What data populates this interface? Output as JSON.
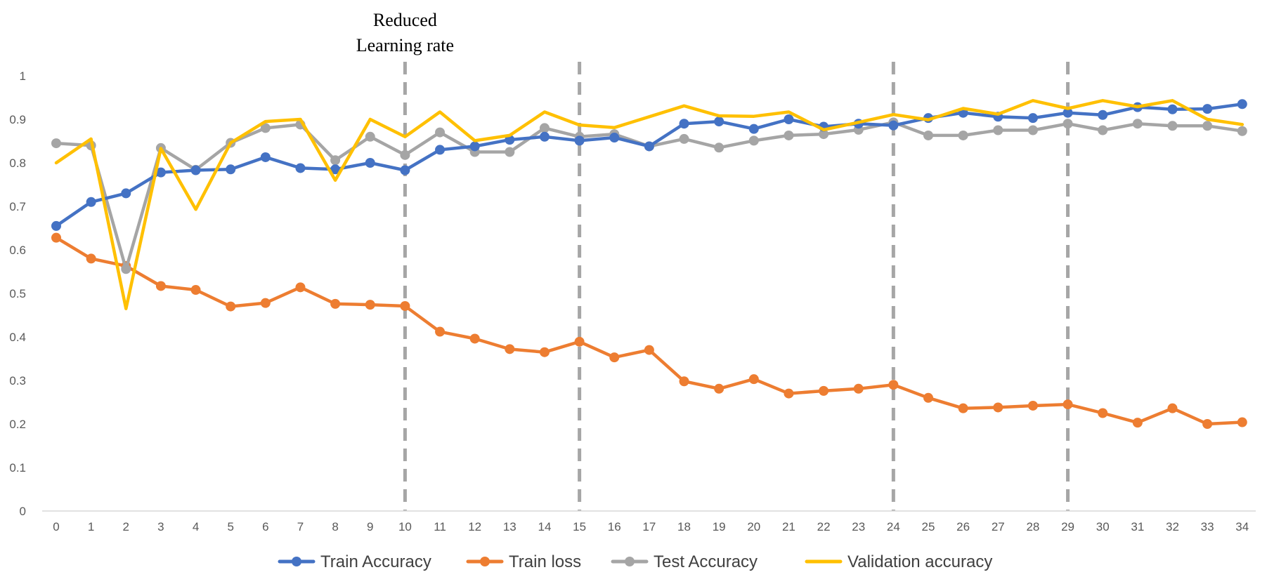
{
  "chart_data": {
    "type": "line",
    "title": "",
    "xlabel": "",
    "ylabel": "",
    "x": [
      0,
      1,
      2,
      3,
      4,
      5,
      6,
      7,
      8,
      9,
      10,
      11,
      12,
      13,
      14,
      15,
      16,
      17,
      18,
      19,
      20,
      21,
      22,
      23,
      24,
      25,
      26,
      27,
      28,
      29,
      30,
      31,
      32,
      33,
      34
    ],
    "x_tick_labels": [
      "0",
      "1",
      "2",
      "3",
      "4",
      "5",
      "6",
      "7",
      "8",
      "9",
      "10",
      "11",
      "12",
      "13",
      "14",
      "15",
      "16",
      "17",
      "18",
      "19",
      "20",
      "21",
      "22",
      "23",
      "24",
      "25",
      "26",
      "27",
      "28",
      "29",
      "30",
      "31",
      "32",
      "33",
      "34"
    ],
    "ylim": [
      0,
      1
    ],
    "y_tick_labels": [
      "0",
      "0.1",
      "0.2",
      "0.3",
      "0.4",
      "0.5",
      "0.6",
      "0.7",
      "0.8",
      "0.9",
      "1"
    ],
    "grid": false,
    "legend_position": "bottom",
    "series": [
      {
        "name": "Train Accuracy",
        "color": "#4472C4",
        "markers": true,
        "values": [
          0.655,
          0.71,
          0.73,
          0.778,
          0.783,
          0.785,
          0.813,
          0.788,
          0.785,
          0.8,
          0.783,
          0.83,
          0.838,
          0.853,
          0.86,
          0.851,
          0.858,
          0.838,
          0.89,
          0.895,
          0.878,
          0.9,
          0.883,
          0.89,
          0.886,
          0.903,
          0.915,
          0.906,
          0.903,
          0.915,
          0.91,
          0.928,
          0.923,
          0.924,
          0.935
        ]
      },
      {
        "name": "Train loss",
        "color": "#ED7D31",
        "markers": true,
        "values": [
          0.628,
          0.58,
          0.563,
          0.517,
          0.508,
          0.47,
          0.478,
          0.514,
          0.476,
          0.474,
          0.471,
          0.412,
          0.396,
          0.372,
          0.365,
          0.389,
          0.353,
          0.37,
          0.298,
          0.281,
          0.303,
          0.27,
          0.276,
          0.281,
          0.29,
          0.26,
          0.236,
          0.238,
          0.242,
          0.245,
          0.225,
          0.203,
          0.236,
          0.2,
          0.204
        ]
      },
      {
        "name": "Test Accuracy",
        "color": "#A5A5A5",
        "markers": true,
        "values": [
          0.845,
          0.84,
          0.556,
          0.834,
          0.784,
          0.846,
          0.88,
          0.888,
          0.806,
          0.86,
          0.818,
          0.87,
          0.825,
          0.825,
          0.88,
          0.86,
          0.866,
          0.838,
          0.855,
          0.835,
          0.851,
          0.863,
          0.866,
          0.876,
          0.893,
          0.863,
          0.863,
          0.875,
          0.875,
          0.89,
          0.875,
          0.89,
          0.885,
          0.885,
          0.873
        ]
      },
      {
        "name": "Validation accuracy",
        "color": "#FFC000",
        "markers": false,
        "values": [
          0.8,
          0.855,
          0.465,
          0.833,
          0.693,
          0.846,
          0.895,
          0.9,
          0.76,
          0.9,
          0.86,
          0.917,
          0.851,
          0.863,
          0.917,
          0.887,
          0.881,
          0.906,
          0.931,
          0.908,
          0.907,
          0.917,
          0.876,
          0.893,
          0.911,
          0.899,
          0.925,
          0.912,
          0.943,
          0.925,
          0.943,
          0.929,
          0.943,
          0.9,
          0.888
        ]
      }
    ],
    "reference_lines": {
      "x": [
        10,
        15,
        24,
        29
      ],
      "style": "dashed",
      "color": "#A6A6A6"
    },
    "annotation": {
      "line1": "Reduced",
      "line2": "Learning rate",
      "at_x": 10
    }
  }
}
